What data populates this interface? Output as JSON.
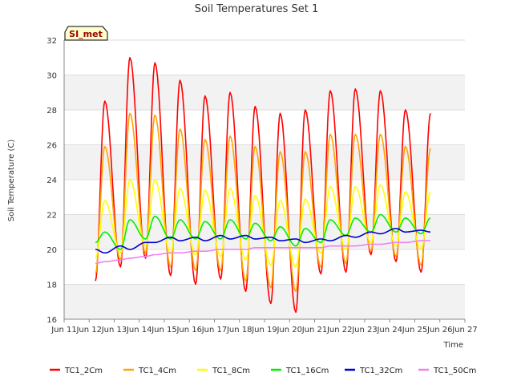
{
  "chart_data": {
    "type": "line",
    "title": "Soil Temperatures Set 1",
    "xlabel": "Time",
    "ylabel": "Soil Temperature (C)",
    "badge": "SI_met",
    "xlim": [
      "2024-06-11",
      "2024-06-27"
    ],
    "x_tick_labels": [
      "Jun 11",
      "Jun 12",
      "Jun 13",
      "Jun 14",
      "Jun 15",
      "Jun 16",
      "Jun 17",
      "Jun 18",
      "Jun 19",
      "Jun 20",
      "Jun 21",
      "Jun 22",
      "Jun 23",
      "Jun 24",
      "Jun 25",
      "Jun 26",
      "Jun 27"
    ],
    "ylim": [
      16,
      32
    ],
    "y_ticks": [
      16,
      18,
      20,
      22,
      24,
      26,
      28,
      30,
      32
    ],
    "grid": true,
    "shaded_bands": true,
    "legend_position": "bottom",
    "x": [
      "Jun 12 06:00",
      "Jun 12 15:00",
      "Jun 13 06:00",
      "Jun 13 15:00",
      "Jun 14 06:00",
      "Jun 14 15:00",
      "Jun 15 06:00",
      "Jun 15 15:00",
      "Jun 16 06:00",
      "Jun 16 15:00",
      "Jun 17 06:00",
      "Jun 17 15:00",
      "Jun 18 06:00",
      "Jun 18 15:00",
      "Jun 19 06:00",
      "Jun 19 15:00",
      "Jun 20 06:00",
      "Jun 20 15:00",
      "Jun 21 06:00",
      "Jun 21 15:00",
      "Jun 22 06:00",
      "Jun 22 15:00",
      "Jun 23 06:00",
      "Jun 23 15:00",
      "Jun 24 06:00",
      "Jun 24 15:00",
      "Jun 25 06:00",
      "Jun 25 15:00"
    ],
    "series": [
      {
        "name": "TC1_2Cm",
        "color": "#ff0000",
        "values": [
          18.2,
          28.5,
          19.0,
          31.0,
          19.5,
          30.7,
          18.5,
          29.7,
          18.0,
          28.8,
          18.3,
          29.0,
          17.6,
          28.2,
          16.9,
          27.8,
          16.4,
          28.0,
          18.6,
          29.1,
          18.7,
          29.2,
          19.7,
          29.1,
          19.3,
          28.0,
          18.7,
          27.8
        ]
      },
      {
        "name": "TC1_4Cm",
        "color": "#ffa500",
        "values": [
          18.6,
          25.9,
          19.4,
          27.8,
          19.8,
          27.7,
          19.0,
          26.9,
          18.8,
          26.3,
          18.8,
          26.5,
          18.2,
          25.9,
          17.8,
          25.6,
          17.6,
          25.6,
          19.0,
          26.6,
          19.2,
          26.6,
          19.9,
          26.6,
          19.6,
          25.9,
          19.1,
          25.8
        ]
      },
      {
        "name": "TC1_8Cm",
        "color": "#ffff00",
        "values": [
          19.5,
          22.8,
          19.8,
          24.0,
          20.2,
          24.0,
          19.8,
          23.5,
          19.7,
          23.4,
          19.6,
          23.5,
          19.4,
          23.1,
          19.1,
          22.8,
          19.0,
          22.9,
          19.8,
          23.6,
          20.0,
          23.6,
          20.4,
          23.7,
          20.2,
          23.3,
          20.0,
          23.3
        ]
      },
      {
        "name": "TC1_16Cm",
        "color": "#00ee00",
        "values": [
          20.4,
          21.0,
          20.0,
          21.7,
          20.6,
          21.9,
          20.6,
          21.7,
          20.6,
          21.6,
          20.6,
          21.7,
          20.6,
          21.5,
          20.5,
          21.3,
          20.2,
          21.2,
          20.4,
          21.7,
          20.8,
          21.8,
          21.0,
          22.0,
          21.0,
          21.8,
          20.9,
          21.8
        ]
      },
      {
        "name": "TC1_32Cm",
        "color": "#0000cc",
        "values": [
          20.0,
          19.8,
          20.2,
          20.0,
          20.4,
          20.4,
          20.7,
          20.5,
          20.7,
          20.5,
          20.8,
          20.6,
          20.8,
          20.6,
          20.7,
          20.5,
          20.6,
          20.4,
          20.6,
          20.5,
          20.8,
          20.7,
          21.0,
          20.9,
          21.2,
          21.0,
          21.1,
          21.0
        ]
      },
      {
        "name": "TC1_50Cm",
        "color": "#ee82ee",
        "values": [
          19.2,
          19.3,
          19.4,
          19.5,
          19.6,
          19.7,
          19.8,
          19.8,
          19.9,
          19.9,
          20.0,
          20.0,
          20.0,
          20.1,
          20.1,
          20.1,
          20.1,
          20.1,
          20.1,
          20.2,
          20.2,
          20.2,
          20.3,
          20.3,
          20.4,
          20.4,
          20.5,
          20.5
        ]
      }
    ]
  }
}
